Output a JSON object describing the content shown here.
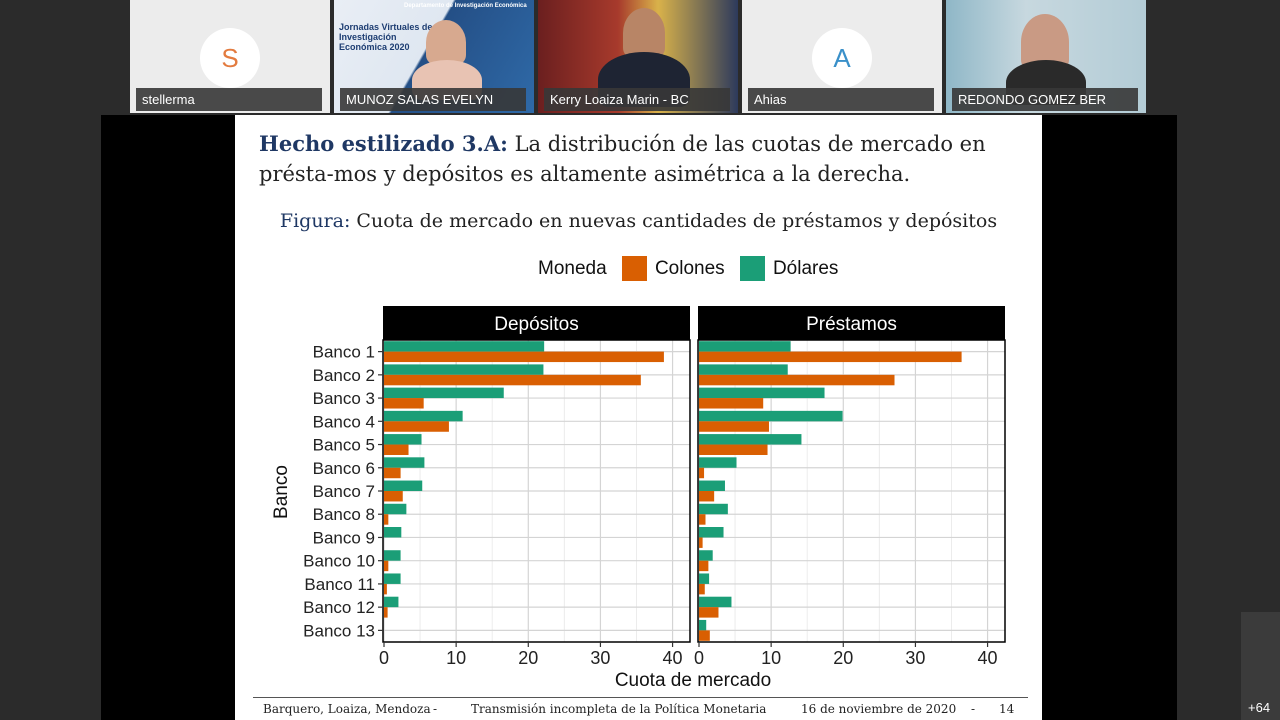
{
  "participants": [
    {
      "name": "stellerma",
      "initial": "S",
      "type": "avatar"
    },
    {
      "name": "MUNOZ SALAS EVELYN",
      "type": "video",
      "banner_header": "Departamento de Investigación Económica",
      "banner_title": "Jornadas Virtuales de Investigación Económica 2020"
    },
    {
      "name": "Kerry Loaiza Marin - BC",
      "type": "video"
    },
    {
      "name": "Ahias",
      "initial": "A",
      "type": "avatar"
    },
    {
      "name": "REDONDO GOMEZ BER",
      "type": "video"
    }
  ],
  "slide": {
    "heading_bold": "Hecho estilizado 3.A:",
    "heading_text": " La distribución de las cuotas de mercado en présta-mos y depósitos es altamente asimétrica a la derecha.",
    "figure_label": "Figura:",
    "figure_caption": " Cuota de mercado en nuevas cantidades de préstamos y depósitos",
    "footer": {
      "authors": "Barquero, Loaiza, Mendoza",
      "sep1": "-",
      "title": "Transmisión incompleta de la Política Monetaria",
      "date": "16 de noviembre de 2020",
      "sep2": "-",
      "page": "14"
    }
  },
  "more_participants": "+64",
  "colors": {
    "colones": "#d95f02",
    "dolares": "#1b9e77",
    "panel_header": "#000000"
  },
  "chart_data": {
    "type": "bar",
    "orientation": "horizontal",
    "legend": {
      "title": "Moneda",
      "position": "top",
      "entries": [
        "Colones",
        "Dólares"
      ]
    },
    "xlabel": "Cuota de mercado",
    "ylabel": "Banco",
    "xlim": [
      0,
      42
    ],
    "xticks": [
      0,
      10,
      20,
      30,
      40
    ],
    "grid": true,
    "categories": [
      "Banco 1",
      "Banco 2",
      "Banco 3",
      "Banco 4",
      "Banco 5",
      "Banco 6",
      "Banco 7",
      "Banco 8",
      "Banco 9",
      "Banco 10",
      "Banco 11",
      "Banco 12",
      "Banco 13"
    ],
    "panels": [
      {
        "title": "Depósitos",
        "series": [
          {
            "name": "Dólares",
            "values": [
              22.2,
              22.1,
              16.6,
              10.9,
              5.2,
              5.6,
              5.3,
              3.1,
              2.4,
              2.3,
              2.3,
              2.0,
              0
            ]
          },
          {
            "name": "Colones",
            "values": [
              38.8,
              35.6,
              5.5,
              9.0,
              3.4,
              2.3,
              2.6,
              0.6,
              0,
              0.6,
              0.4,
              0.5,
              0
            ]
          }
        ]
      },
      {
        "title": "Préstamos",
        "series": [
          {
            "name": "Dólares",
            "values": [
              12.7,
              12.3,
              17.4,
              19.9,
              14.2,
              5.2,
              3.6,
              4.0,
              3.4,
              1.9,
              1.4,
              4.5,
              1.0
            ]
          },
          {
            "name": "Colones",
            "values": [
              36.4,
              27.1,
              8.9,
              9.7,
              9.5,
              0.7,
              2.1,
              0.9,
              0.5,
              1.3,
              0.8,
              2.7,
              1.5
            ]
          }
        ]
      }
    ]
  }
}
